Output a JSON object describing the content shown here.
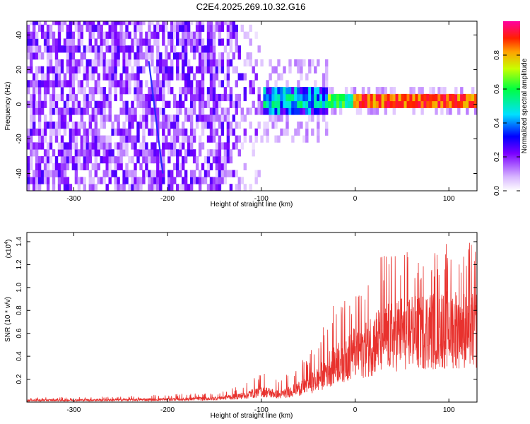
{
  "title": "C2E4.2025.269.10.32.G16",
  "chart_data": [
    {
      "type": "heatmap",
      "name": "spectrogram",
      "xlabel": "Height of straight line (km)",
      "ylabel": "Frequency (Hz)",
      "xlim": [
        -350,
        130
      ],
      "ylim": [
        -50,
        48
      ],
      "xticks": [
        -300,
        -200,
        -100,
        0,
        100
      ],
      "xtick_labels": [
        "-300",
        "-200",
        "-100",
        "0",
        "100"
      ],
      "yticks": [
        -40,
        -20,
        0,
        20,
        40
      ],
      "ytick_labels": [
        "-40",
        "-20",
        "0",
        "20",
        "40"
      ],
      "colorbar": {
        "label": "Normalized spectral amplitude",
        "range": [
          0,
          1
        ],
        "ticks": [
          0.0,
          0.2,
          0.4,
          0.6,
          0.8
        ],
        "tick_labels": [
          "0.0",
          "0.2",
          "0.4",
          "0.6",
          "0.8"
        ]
      },
      "features": {
        "broadband_noise_until_km": -100,
        "line_frequency_hz": 0,
        "strong_line_from_km": -25,
        "slanted_track": {
          "from": [
            -220,
            25
          ],
          "to": [
            -205,
            -40
          ]
        }
      }
    },
    {
      "type": "line",
      "name": "snr",
      "xlabel": "Height of straight line (km)",
      "ylabel": "SNR (10 * v/v)",
      "yscale_label": "(x10",
      "yscale_exp": "4",
      "yscale_close": ")",
      "xlim": [
        -350,
        130
      ],
      "ylim": [
        0,
        1.48
      ],
      "xticks": [
        -300,
        -200,
        -100,
        0,
        100
      ],
      "xtick_labels": [
        "-300",
        "-200",
        "-100",
        "0",
        "100"
      ],
      "yticks": [
        0.2,
        0.4,
        0.6,
        0.8,
        1.0,
        1.2,
        1.4
      ],
      "ytick_labels": [
        "0.2",
        "0.4",
        "0.6",
        "0.8",
        "1.0",
        "1.2",
        "1.4"
      ],
      "color": "#e8322e",
      "envelope": {
        "x": [
          -350,
          -250,
          -200,
          -150,
          -120,
          -100,
          -80,
          -60,
          -40,
          -20,
          0,
          20,
          40,
          60,
          80,
          100,
          120,
          130
        ],
        "mean": [
          0.02,
          0.025,
          0.03,
          0.04,
          0.07,
          0.12,
          0.08,
          0.15,
          0.25,
          0.45,
          0.55,
          0.65,
          0.75,
          0.78,
          0.8,
          0.82,
          0.82,
          0.8
        ],
        "max": [
          0.04,
          0.05,
          0.07,
          0.08,
          0.15,
          0.3,
          0.2,
          0.35,
          0.55,
          0.9,
          1.0,
          1.25,
          1.35,
          1.3,
          1.35,
          1.4,
          1.45,
          1.4
        ]
      }
    }
  ]
}
